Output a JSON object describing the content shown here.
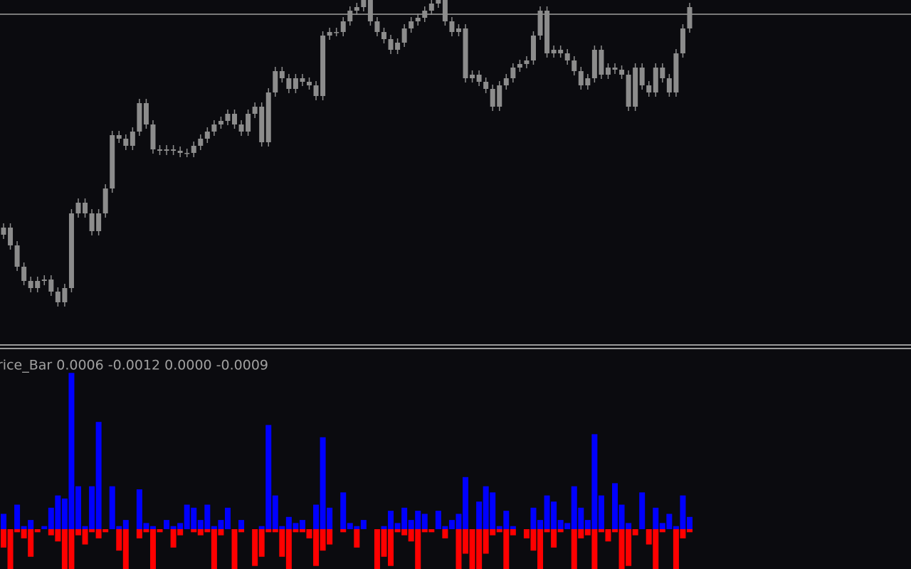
{
  "chart_data": [
    {
      "type": "candlestick",
      "color": "#8c8c8c",
      "ylim": [
        0,
        480
      ],
      "level": 460,
      "level_color": "#7a7a7a",
      "open": [
        150,
        160,
        135,
        105,
        85,
        75,
        85,
        87,
        70,
        55,
        75,
        180,
        195,
        180,
        155,
        180,
        215,
        290,
        285,
        275,
        295,
        335,
        305,
        270,
        268,
        270,
        268,
        265,
        265,
        275,
        285,
        295,
        305,
        310,
        320,
        305,
        295,
        320,
        330,
        280,
        350,
        380,
        370,
        355,
        370,
        365,
        360,
        345,
        430,
        435,
        435,
        450,
        465,
        470,
        480,
        450,
        435,
        425,
        410,
        420,
        440,
        450,
        455,
        465,
        475,
        480,
        450,
        435,
        440,
        370,
        375,
        365,
        355,
        330,
        360,
        370,
        385,
        390,
        395,
        430,
        465,
        405,
        410,
        405,
        395,
        380,
        360,
        370,
        410,
        375,
        385,
        382,
        375,
        330,
        385,
        360,
        350,
        385,
        370,
        350,
        405,
        440
      ],
      "high": [
        166,
        166,
        141,
        111,
        91,
        91,
        93,
        93,
        76,
        81,
        186,
        201,
        201,
        186,
        186,
        221,
        296,
        296,
        291,
        301,
        341,
        341,
        311,
        276,
        276,
        276,
        274,
        271,
        281,
        291,
        301,
        311,
        316,
        326,
        326,
        311,
        326,
        336,
        336,
        356,
        386,
        386,
        376,
        376,
        376,
        371,
        366,
        436,
        441,
        441,
        456,
        471,
        476,
        486,
        486,
        456,
        441,
        431,
        426,
        446,
        456,
        461,
        471,
        481,
        486,
        486,
        456,
        446,
        446,
        381,
        381,
        371,
        361,
        366,
        376,
        391,
        396,
        401,
        436,
        471,
        471,
        416,
        416,
        411,
        401,
        386,
        376,
        416,
        416,
        391,
        391,
        388,
        381,
        391,
        391,
        366,
        391,
        391,
        376,
        411,
        446,
        476
      ],
      "low": [
        144,
        129,
        99,
        79,
        69,
        69,
        79,
        64,
        49,
        49,
        69,
        174,
        174,
        149,
        149,
        174,
        209,
        279,
        269,
        269,
        289,
        299,
        264,
        262,
        262,
        262,
        259,
        259,
        259,
        269,
        279,
        289,
        299,
        304,
        299,
        289,
        289,
        314,
        274,
        274,
        344,
        364,
        349,
        349,
        359,
        354,
        339,
        339,
        424,
        429,
        429,
        444,
        459,
        464,
        444,
        429,
        419,
        404,
        404,
        414,
        434,
        444,
        449,
        459,
        469,
        444,
        429,
        429,
        364,
        364,
        359,
        349,
        324,
        324,
        354,
        364,
        379,
        384,
        389,
        424,
        399,
        399,
        399,
        389,
        374,
        354,
        354,
        364,
        369,
        369,
        376,
        369,
        324,
        324,
        354,
        344,
        344,
        364,
        344,
        344,
        399,
        434
      ],
      "close": [
        160,
        135,
        105,
        85,
        75,
        85,
        87,
        70,
        55,
        75,
        180,
        195,
        180,
        155,
        180,
        215,
        290,
        285,
        275,
        295,
        335,
        305,
        270,
        268,
        270,
        268,
        265,
        265,
        275,
        285,
        295,
        305,
        310,
        320,
        305,
        295,
        320,
        330,
        280,
        350,
        380,
        370,
        355,
        370,
        365,
        360,
        345,
        430,
        435,
        435,
        450,
        465,
        470,
        480,
        450,
        435,
        425,
        410,
        420,
        440,
        450,
        455,
        465,
        475,
        480,
        450,
        435,
        440,
        370,
        375,
        365,
        355,
        330,
        360,
        370,
        385,
        390,
        395,
        430,
        465,
        405,
        410,
        405,
        395,
        380,
        360,
        370,
        410,
        375,
        385,
        382,
        375,
        330,
        385,
        360,
        350,
        385,
        370,
        350,
        405,
        440,
        470
      ]
    },
    {
      "type": "bar",
      "label": "rice_Bar 0.0006 -0.0012 0.0000 -0.0009",
      "label_color": "#a0a0a0",
      "ylim": [
        -0.0013,
        0.0052
      ],
      "series": [
        {
          "color": "#0000ff",
          "values": [
            0.0005,
            0,
            0.0008,
            0.0001,
            0.0003,
            0,
            0.0001,
            0.0007,
            0.0011,
            0.001,
            0.0051,
            0.0014,
            0.0001,
            0.0014,
            0.0035,
            0,
            0.0014,
            0.0001,
            0.0003,
            0,
            0.0013,
            0.0002,
            0.0001,
            0,
            0.0003,
            0.0001,
            0.0002,
            0.0008,
            0.0007,
            0.0003,
            0.0008,
            0.0001,
            0.0003,
            0.0007,
            0,
            0.0003,
            0,
            0,
            0.0001,
            0.0034,
            0.0011,
            0.0001,
            0.0004,
            0.0002,
            0.0003,
            0,
            0.0008,
            0.003,
            0.0007,
            0,
            0.0012,
            0.0002,
            0.0001,
            0.0003,
            0,
            0,
            0.0001,
            0.0006,
            0.0002,
            0.0007,
            0.0003,
            0.0006,
            0.0005,
            0,
            0.0006,
            0.0001,
            0.0003,
            0.0005,
            0.0017,
            0,
            0.0009,
            0.0014,
            0.0012,
            0.0001,
            0.0006,
            0.0001,
            0,
            0,
            0.0007,
            0.0003,
            0.0011,
            0.0009,
            0.0003,
            0.0002,
            0.0014,
            0.0007,
            0.0003,
            0.0031,
            0.0011,
            0,
            0.0015,
            0.0008,
            0.0002,
            0,
            0.0012,
            0,
            0.0007,
            0.0002,
            0.0005,
            0.0001,
            0.0011,
            0.0004
          ]
        },
        {
          "color": "#ff0000",
          "values": [
            -0.0006,
            -0.0013,
            -0.0001,
            -0.0003,
            -0.0009,
            -0.0001,
            0,
            -0.0002,
            -0.0004,
            -0.0013,
            -0.0013,
            -0.0002,
            -0.0005,
            -0.0001,
            -0.0003,
            -0.0001,
            0,
            -0.0007,
            -0.0013,
            0,
            -0.0003,
            -0.0001,
            -0.0013,
            -0.0001,
            0,
            -0.0006,
            -0.0002,
            0,
            -0.0001,
            -0.0002,
            -0.0001,
            -0.0013,
            -0.0002,
            0,
            -0.0013,
            -0.0001,
            0,
            -0.0012,
            -0.0009,
            -0.0001,
            -0.0001,
            -0.0009,
            -0.0013,
            -0.0001,
            -0.0001,
            -0.0003,
            -0.0012,
            -0.0007,
            -0.0005,
            0,
            -0.0001,
            0,
            -0.0006,
            0,
            0,
            -0.0013,
            -0.0009,
            -0.0012,
            -0.0001,
            -0.0002,
            -0.0004,
            -0.0013,
            -0.0001,
            -0.0001,
            0,
            -0.0003,
            0,
            -0.0013,
            -0.0008,
            -0.0013,
            -0.0013,
            -0.0008,
            -0.0002,
            -0.0001,
            -0.0013,
            -0.0002,
            0,
            -0.0003,
            -0.0007,
            -0.0013,
            -0.0001,
            -0.0006,
            -0.0001,
            0,
            -0.0013,
            -0.0003,
            -0.0002,
            -0.0013,
            -0.0001,
            -0.0004,
            -0.0001,
            -0.0013,
            -0.0012,
            -0.0002,
            0,
            -0.0005,
            -0.0013,
            -0.0001,
            0,
            -0.0013,
            -0.0003,
            -0.0001
          ]
        }
      ]
    }
  ]
}
